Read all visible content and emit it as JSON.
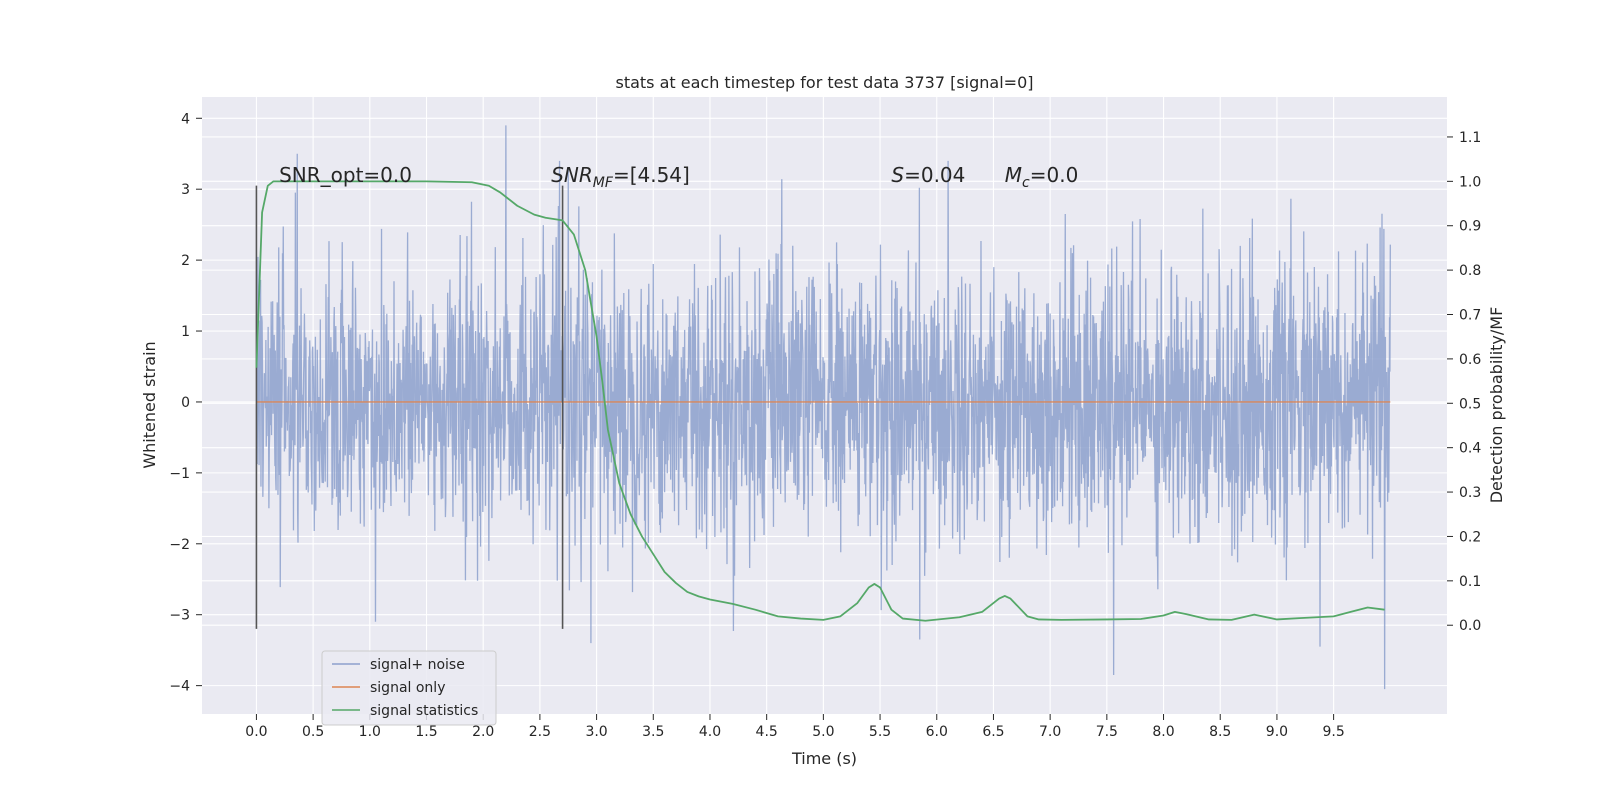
{
  "chart_data": {
    "type": "line",
    "title": "stats at each timestep for test data 3737 [signal=0]",
    "xlabel": "Time (s)",
    "ylabel_left": "Whitened strain",
    "ylabel_right": "Detection probability/MF",
    "xlim": [
      -0.48,
      10.5
    ],
    "ylim_left": [
      -4.4,
      4.3
    ],
    "ylim_right": [
      -0.2,
      1.19
    ],
    "x_ticks": [
      0.0,
      0.5,
      1.0,
      1.5,
      2.0,
      2.5,
      3.0,
      3.5,
      4.0,
      4.5,
      5.0,
      5.5,
      6.0,
      6.5,
      7.0,
      7.5,
      8.0,
      8.5,
      9.0,
      9.5
    ],
    "x_tick_labels": [
      "0.0",
      "0.5",
      "1.0",
      "1.5",
      "2.0",
      "2.5",
      "3.0",
      "3.5",
      "4.0",
      "4.5",
      "5.0",
      "5.5",
      "6.0",
      "6.5",
      "7.0",
      "7.5",
      "8.0",
      "8.5",
      "9.0",
      "9.5"
    ],
    "y_left_ticks": [
      4,
      3,
      2,
      1,
      0,
      -1,
      -2,
      -3,
      -4
    ],
    "y_left_tick_labels": [
      "4",
      "3",
      "2",
      "1",
      "0",
      "−1",
      "−2",
      "−3",
      "−4"
    ],
    "y_right_ticks": [
      1.1,
      1.0,
      0.9,
      0.8,
      0.7,
      0.6,
      0.5,
      0.4,
      0.3,
      0.2,
      0.1,
      0.0
    ],
    "y_right_tick_labels": [
      "1.1",
      "1.0",
      "0.9",
      "0.8",
      "0.7",
      "0.6",
      "0.5",
      "0.4",
      "0.3",
      "0.2",
      "0.1",
      "0.0"
    ],
    "grid": true,
    "legend_position": "lower-left",
    "series": [
      {
        "name": "signal+ noise",
        "axis": "left",
        "color": "#8ca0cc",
        "x_range": [
          0.0,
          10.0
        ],
        "typical_band": [
          -1.9,
          1.9
        ],
        "extreme_range": [
          -4.05,
          3.9
        ],
        "notable_peaks": [
          {
            "x": 0.36,
            "y": 3.5
          },
          {
            "x": 2.2,
            "y": 3.9
          },
          {
            "x": 2.75,
            "y": 3.3
          },
          {
            "x": 2.95,
            "y": -3.4
          },
          {
            "x": 1.05,
            "y": -3.1
          },
          {
            "x": 7.56,
            "y": -3.85
          },
          {
            "x": 9.95,
            "y": -4.05
          },
          {
            "x": 5.85,
            "y": -3.35
          },
          {
            "x": 9.38,
            "y": -3.45
          }
        ]
      },
      {
        "name": "signal only",
        "axis": "left",
        "color": "#dd8452",
        "x": [
          0.0,
          10.0
        ],
        "y": [
          0.0,
          0.0
        ]
      },
      {
        "name": "signal statistics",
        "axis": "right",
        "color": "#55a868",
        "x": [
          0.0,
          0.05,
          0.1,
          0.15,
          0.25,
          0.4,
          0.7,
          1.0,
          1.5,
          1.9,
          2.05,
          2.15,
          2.3,
          2.45,
          2.55,
          2.7,
          2.8,
          2.9,
          3.0,
          3.05,
          3.1,
          3.2,
          3.3,
          3.4,
          3.5,
          3.6,
          3.7,
          3.8,
          3.9,
          4.0,
          4.2,
          4.4,
          4.6,
          4.8,
          5.0,
          5.15,
          5.3,
          5.4,
          5.45,
          5.5,
          5.6,
          5.7,
          5.9,
          6.2,
          6.4,
          6.55,
          6.6,
          6.65,
          6.8,
          6.9,
          7.1,
          7.5,
          7.8,
          8.0,
          8.1,
          8.2,
          8.4,
          8.6,
          8.8,
          9.0,
          9.2,
          9.5,
          9.65,
          9.8,
          9.95
        ],
        "y": [
          0.58,
          0.93,
          0.99,
          1.0,
          1.0,
          1.0,
          1.0,
          1.0,
          1.0,
          0.998,
          0.99,
          0.975,
          0.945,
          0.925,
          0.918,
          0.912,
          0.88,
          0.8,
          0.65,
          0.55,
          0.44,
          0.32,
          0.25,
          0.2,
          0.16,
          0.12,
          0.095,
          0.075,
          0.065,
          0.058,
          0.048,
          0.035,
          0.02,
          0.015,
          0.012,
          0.02,
          0.05,
          0.085,
          0.093,
          0.085,
          0.035,
          0.015,
          0.01,
          0.018,
          0.03,
          0.06,
          0.066,
          0.06,
          0.02,
          0.013,
          0.012,
          0.013,
          0.014,
          0.022,
          0.03,
          0.025,
          0.013,
          0.012,
          0.024,
          0.013,
          0.016,
          0.02,
          0.03,
          0.04,
          0.035
        ]
      }
    ],
    "vertical_lines": [
      {
        "x": 0.0,
        "y_from": -3.2,
        "y_to": 3.05,
        "color": "#555555"
      },
      {
        "x": 2.7,
        "y_from": -3.2,
        "y_to": 3.05,
        "color": "#555555"
      }
    ],
    "annotations": [
      {
        "id": "snr-opt",
        "text": "SNR_opt=0.0",
        "x": 0.2,
        "y": 3.1
      },
      {
        "id": "snr-mf",
        "text_italic": "SNR",
        "text_sub": "MF",
        "text_rest": "=[4.54]",
        "x": 2.6,
        "y": 3.1
      },
      {
        "id": "s-stat",
        "text_italic": "S",
        "text_rest": "=0.04",
        "x": 5.6,
        "y": 3.1
      },
      {
        "id": "mc-stat",
        "text_italic": "M",
        "text_sub": "c",
        "text_rest": "=0.0",
        "x": 6.6,
        "y": 3.1
      }
    ]
  }
}
